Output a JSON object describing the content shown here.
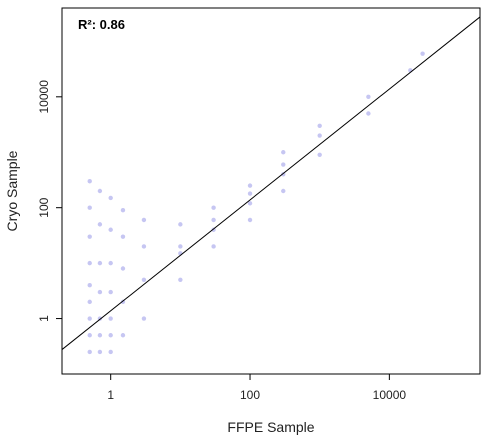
{
  "chart_data": {
    "type": "scatter",
    "xlabel": "FFPE Sample",
    "ylabel": "Cryo Sample",
    "xscale": "log",
    "yscale": "log",
    "xlim": [
      0.2,
      200000
    ],
    "ylim": [
      0.1,
      400000
    ],
    "x_ticks": [
      {
        "value": 1,
        "label": "1"
      },
      {
        "value": 100,
        "label": "100"
      },
      {
        "value": 10000,
        "label": "10000"
      }
    ],
    "y_ticks": [
      {
        "value": 1,
        "label": "1"
      },
      {
        "value": 100,
        "label": "100"
      },
      {
        "value": 10000,
        "label": "10000"
      }
    ],
    "annotation": "R²:  0.86",
    "point_color": "#1a1acc",
    "regression_line": {
      "slope": 1.0,
      "intercept_log10": 0.14
    },
    "grid": false,
    "legend": "none",
    "series": [
      {
        "points": [
          [
            0.5,
            0.25
          ],
          [
            0.5,
            0.5
          ],
          [
            0.5,
            1
          ],
          [
            0.5,
            2
          ],
          [
            0.5,
            4
          ],
          [
            0.5,
            10
          ],
          [
            0.5,
            30
          ],
          [
            0.5,
            100
          ],
          [
            0.5,
            300
          ],
          [
            0.7,
            0.25
          ],
          [
            0.7,
            0.5
          ],
          [
            0.7,
            1
          ],
          [
            0.7,
            3
          ],
          [
            0.7,
            10
          ],
          [
            0.7,
            50
          ],
          [
            0.7,
            200
          ],
          [
            1,
            0.25
          ],
          [
            1,
            0.5
          ],
          [
            1,
            1
          ],
          [
            1,
            3
          ],
          [
            1,
            10
          ],
          [
            1,
            40
          ],
          [
            1,
            150
          ],
          [
            1.5,
            0.5
          ],
          [
            1.5,
            2
          ],
          [
            1.5,
            8
          ],
          [
            1.5,
            30
          ],
          [
            1.5,
            90
          ],
          [
            3,
            1
          ],
          [
            3,
            5
          ],
          [
            3,
            20
          ],
          [
            3,
            60
          ],
          [
            10,
            5
          ],
          [
            10,
            20
          ],
          [
            10,
            50
          ],
          [
            10,
            15
          ],
          [
            30,
            20
          ],
          [
            30,
            40
          ],
          [
            30,
            100
          ],
          [
            30,
            60
          ],
          [
            100,
            60
          ],
          [
            100,
            120
          ],
          [
            100,
            250
          ],
          [
            100,
            180
          ],
          [
            300,
            200
          ],
          [
            300,
            400
          ],
          [
            300,
            600
          ],
          [
            300,
            1000
          ],
          [
            1000,
            900
          ],
          [
            1000,
            2000
          ],
          [
            1000,
            3000
          ],
          [
            5000,
            5000
          ],
          [
            5000,
            10000
          ],
          [
            20000,
            30000
          ],
          [
            30000,
            60000
          ]
        ]
      }
    ]
  }
}
